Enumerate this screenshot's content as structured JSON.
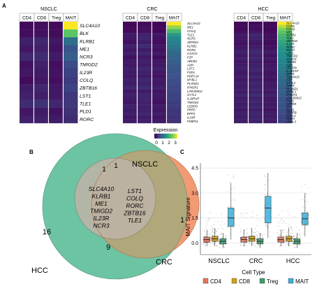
{
  "panels": {
    "a": {
      "letter": "A"
    },
    "b": {
      "letter": "B"
    },
    "c": {
      "letter": "C"
    }
  },
  "heatmaps": [
    {
      "title": "NSCLC",
      "columns": [
        "CD4",
        "CD8",
        "Treg",
        "MAIT"
      ],
      "genes": [
        "SLC4A10",
        "BLK",
        "KLRB1",
        "ME1",
        "NCR3",
        "TMIGD2",
        "IL23R",
        "COLQ",
        "ZBTB16",
        "LST1",
        "TLE1",
        "PLD1",
        "RORC"
      ],
      "values": [
        [
          0.1,
          0.12,
          0.08,
          3.0
        ],
        [
          0.12,
          0.15,
          0.1,
          2.2
        ],
        [
          0.3,
          0.35,
          0.2,
          1.1
        ],
        [
          0.2,
          0.3,
          0.15,
          0.8
        ],
        [
          0.35,
          0.4,
          0.25,
          0.9
        ],
        [
          0.15,
          0.3,
          0.12,
          0.7
        ],
        [
          0.2,
          0.25,
          0.18,
          0.6
        ],
        [
          0.1,
          0.2,
          0.12,
          0.55
        ],
        [
          0.25,
          0.35,
          0.2,
          0.6
        ],
        [
          0.3,
          0.28,
          0.22,
          0.5
        ],
        [
          0.4,
          0.45,
          0.35,
          0.5
        ],
        [
          0.2,
          0.25,
          0.15,
          0.45
        ],
        [
          0.3,
          0.3,
          0.25,
          0.4
        ]
      ]
    },
    {
      "title": "CRC",
      "columns": [
        "CD4",
        "CD8",
        "Treg",
        "MAIT"
      ],
      "genes": [
        "SLC4A10",
        "ME1",
        "COLQ",
        "TLE1",
        "NCR3",
        "ZBTB16",
        "KLRB1",
        "RORC",
        "CXXC5",
        "FZP",
        "ABCB1",
        "A2M",
        "LST1",
        "FSD1",
        "PDRY14",
        "MYBL1",
        "PLXND1",
        "IFNGR1",
        "LINC00612",
        "SYTL2",
        "IL18RAP",
        "TMIGD2",
        "CEBPD",
        "PRR5",
        "DPP4",
        "IL23R",
        "FKBP11"
      ],
      "values": [
        [
          0.05,
          0.08,
          0.05,
          3.0
        ],
        [
          0.1,
          0.15,
          0.08,
          2.5
        ],
        [
          0.08,
          0.12,
          0.06,
          2.0
        ],
        [
          0.25,
          0.3,
          0.2,
          1.6
        ],
        [
          0.2,
          0.35,
          0.15,
          1.4
        ],
        [
          0.15,
          0.25,
          0.12,
          1.3
        ],
        [
          0.3,
          0.4,
          0.2,
          1.2
        ],
        [
          0.2,
          0.25,
          0.15,
          1.1
        ],
        [
          0.3,
          0.35,
          0.25,
          1.0
        ],
        [
          0.15,
          0.2,
          0.1,
          0.95
        ],
        [
          0.25,
          0.3,
          0.2,
          0.9
        ],
        [
          0.2,
          0.25,
          0.2,
          0.85
        ],
        [
          0.3,
          0.35,
          0.3,
          0.8
        ],
        [
          0.25,
          0.3,
          0.2,
          0.8
        ],
        [
          0.2,
          0.25,
          0.15,
          0.75
        ],
        [
          0.3,
          0.35,
          0.25,
          0.7
        ],
        [
          0.25,
          0.3,
          0.2,
          0.7
        ],
        [
          0.35,
          0.4,
          0.3,
          0.65
        ],
        [
          0.2,
          0.25,
          0.18,
          0.65
        ],
        [
          0.3,
          0.35,
          0.25,
          0.6
        ],
        [
          0.25,
          0.35,
          0.2,
          0.6
        ],
        [
          0.2,
          0.3,
          0.15,
          0.55
        ],
        [
          0.3,
          0.3,
          0.25,
          0.55
        ],
        [
          0.25,
          0.3,
          0.2,
          0.5
        ],
        [
          0.3,
          0.35,
          0.28,
          0.5
        ],
        [
          0.2,
          0.25,
          0.18,
          0.45
        ],
        [
          0.25,
          0.3,
          0.22,
          0.45
        ]
      ]
    },
    {
      "title": "HCC",
      "columns": [
        "CD4",
        "CD8",
        "Treg",
        "MAIT"
      ],
      "genes": [
        "SLC4A10",
        "CCR6",
        "COLQ",
        "ME1",
        "KLRB1",
        "TLE1",
        "ZBTB16",
        "IL23R",
        "RORC",
        "NCR3",
        "LST1",
        "TMIGD2",
        "CXXC5",
        "ABCB1",
        "A2M",
        "CEBPD",
        "IL18RAP",
        "DPP4",
        "TSPAN15",
        "FZP",
        "SYTL2",
        "PRR5",
        "PLXND1",
        "MYBL1",
        "IFNGR1",
        "LINC00612",
        "FSD1",
        "GPR65",
        "KIT",
        "NCS1",
        "CEBPB",
        "HACL1",
        "RORA",
        "APOL3"
      ],
      "values": [
        [
          0.05,
          0.08,
          0.05,
          3.0
        ],
        [
          0.1,
          0.15,
          0.08,
          2.7
        ],
        [
          0.08,
          0.12,
          0.06,
          2.4
        ],
        [
          0.15,
          0.2,
          0.1,
          2.2
        ],
        [
          0.25,
          0.35,
          0.15,
          2.0
        ],
        [
          0.2,
          0.3,
          0.15,
          1.9
        ],
        [
          0.18,
          0.25,
          0.12,
          1.8
        ],
        [
          0.15,
          0.2,
          0.1,
          1.7
        ],
        [
          0.2,
          0.25,
          0.15,
          1.6
        ],
        [
          0.25,
          0.35,
          0.2,
          1.55
        ],
        [
          0.3,
          0.35,
          0.25,
          1.5
        ],
        [
          0.2,
          0.3,
          0.15,
          1.45
        ],
        [
          0.3,
          0.35,
          0.25,
          1.4
        ],
        [
          0.2,
          0.25,
          0.15,
          1.35
        ],
        [
          0.25,
          0.3,
          0.2,
          1.3
        ],
        [
          0.3,
          0.3,
          0.25,
          1.25
        ],
        [
          0.25,
          0.35,
          0.2,
          1.2
        ],
        [
          0.2,
          0.25,
          0.18,
          1.15
        ],
        [
          0.3,
          0.35,
          0.25,
          1.1
        ],
        [
          0.2,
          0.25,
          0.15,
          1.05
        ],
        [
          0.3,
          0.35,
          0.25,
          1.0
        ],
        [
          0.25,
          0.3,
          0.2,
          0.95
        ],
        [
          0.3,
          0.35,
          0.28,
          0.9
        ],
        [
          0.25,
          0.3,
          0.2,
          0.9
        ],
        [
          0.35,
          0.4,
          0.3,
          0.85
        ],
        [
          0.25,
          0.3,
          0.22,
          0.8
        ],
        [
          0.3,
          0.35,
          0.25,
          0.8
        ],
        [
          0.25,
          0.3,
          0.2,
          0.75
        ],
        [
          0.3,
          0.35,
          0.28,
          0.75
        ],
        [
          0.2,
          0.25,
          0.18,
          0.7
        ],
        [
          0.3,
          0.35,
          0.25,
          0.7
        ],
        [
          0.25,
          0.3,
          0.22,
          0.65
        ],
        [
          0.3,
          0.35,
          0.28,
          0.65
        ],
        [
          0.25,
          0.3,
          0.22,
          0.6
        ]
      ]
    }
  ],
  "legend_expression": {
    "title": "Expression",
    "ticks": [
      "0",
      "1",
      "2",
      "3"
    ],
    "range": [
      0,
      3
    ]
  },
  "venn": {
    "sets": [
      {
        "name": "NSCLC",
        "color": "#b9b1a2"
      },
      {
        "name": "CRC",
        "color": "#f08a5a"
      },
      {
        "name": "HCC",
        "color": "#5fbf9b"
      }
    ],
    "regions": {
      "nsclc_only": "1",
      "nsclc_hcc": "1",
      "hcc_only": "16",
      "crc_only": "1",
      "crc_hcc": "9"
    },
    "shared_genes_col1": [
      "SLC4A10",
      "KLRB1",
      "ME1",
      "TMIGD2",
      "IL23R",
      "NCR3"
    ],
    "shared_genes_col2": [
      "LST1",
      "COLQ",
      "RORC",
      "ZBTB16",
      "TLE1"
    ]
  },
  "chart_data": {
    "type": "box",
    "title": "",
    "xlabel": "Cell Type",
    "ylabel": "MAIT Signature",
    "ylim": [
      -0.7,
      4.8
    ],
    "yticks": [
      0,
      1.5,
      3,
      4.5
    ],
    "yticklabels": [
      "0.0",
      "1.5",
      "3.0",
      "4.5"
    ],
    "categories": [
      "NSCLC",
      "CRC",
      "HCC"
    ],
    "series": [
      {
        "name": "CD4",
        "color": "#e8735b",
        "boxes": [
          {
            "q1": 0.05,
            "median": 0.2,
            "q3": 0.35,
            "lo": -0.2,
            "hi": 0.8
          },
          {
            "q1": 0.05,
            "median": 0.2,
            "q3": 0.35,
            "lo": -0.2,
            "hi": 0.8
          },
          {
            "q1": 0.05,
            "median": 0.2,
            "q3": 0.35,
            "lo": -0.2,
            "hi": 0.8
          }
        ]
      },
      {
        "name": "CD8",
        "color": "#d4a017",
        "boxes": [
          {
            "q1": 0.1,
            "median": 0.25,
            "q3": 0.4,
            "lo": -0.2,
            "hi": 0.9
          },
          {
            "q1": 0.1,
            "median": 0.25,
            "q3": 0.4,
            "lo": -0.2,
            "hi": 0.9
          },
          {
            "q1": 0.1,
            "median": 0.25,
            "q3": 0.4,
            "lo": -0.2,
            "hi": 0.9
          }
        ]
      },
      {
        "name": "Treg",
        "color": "#3aa06a",
        "boxes": [
          {
            "q1": -0.05,
            "median": 0.1,
            "q3": 0.25,
            "lo": -0.3,
            "hi": 0.6
          },
          {
            "q1": -0.05,
            "median": 0.1,
            "q3": 0.25,
            "lo": -0.3,
            "hi": 0.6
          },
          {
            "q1": -0.05,
            "median": 0.1,
            "q3": 0.25,
            "lo": -0.3,
            "hi": 0.6
          }
        ]
      },
      {
        "name": "MAIT",
        "color": "#3ab0d8",
        "boxes": [
          {
            "q1": 1.0,
            "median": 1.5,
            "q3": 2.1,
            "lo": 0.2,
            "hi": 3.6
          },
          {
            "q1": 1.2,
            "median": 2.1,
            "q3": 2.8,
            "lo": 0.3,
            "hi": 4.2
          },
          {
            "q1": 1.1,
            "median": 1.45,
            "q3": 1.8,
            "lo": 0.4,
            "hi": 3.0
          }
        ]
      }
    ]
  }
}
